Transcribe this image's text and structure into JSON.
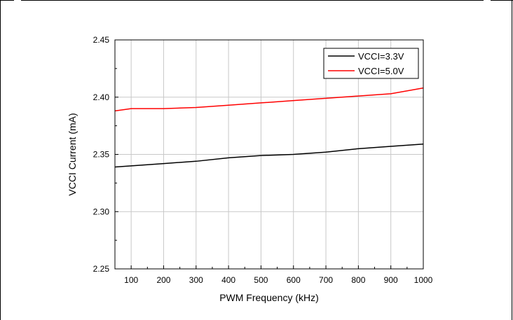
{
  "chart_data": {
    "type": "line",
    "xlabel": "PWM Frequency (kHz)",
    "ylabel": "VCCI Current (mA)",
    "xlim": [
      50,
      1000
    ],
    "ylim": [
      2.25,
      2.45
    ],
    "x_ticks": [
      100,
      200,
      300,
      400,
      500,
      600,
      700,
      800,
      900,
      1000
    ],
    "x_tick_labels": [
      "100",
      "200",
      "300",
      "400",
      "500",
      "600",
      "700",
      "800",
      "900",
      "1000"
    ],
    "y_ticks": [
      2.25,
      2.3,
      2.35,
      2.4,
      2.45
    ],
    "y_tick_labels": [
      "2.25",
      "2.30",
      "2.35",
      "2.40",
      "2.45"
    ],
    "grid": true,
    "legend_position": "top-right",
    "series": [
      {
        "name": "VCCI=3.3V",
        "color": "#000000",
        "x": [
          50,
          100,
          200,
          300,
          400,
          500,
          600,
          700,
          800,
          900,
          1000
        ],
        "y": [
          2.339,
          2.34,
          2.342,
          2.344,
          2.347,
          2.349,
          2.35,
          2.352,
          2.355,
          2.357,
          2.359
        ]
      },
      {
        "name": "VCCI=5.0V",
        "color": "#ff0000",
        "x": [
          50,
          100,
          200,
          300,
          400,
          500,
          600,
          700,
          800,
          900,
          1000
        ],
        "y": [
          2.388,
          2.39,
          2.39,
          2.391,
          2.393,
          2.395,
          2.397,
          2.399,
          2.401,
          2.403,
          2.408
        ]
      }
    ]
  }
}
